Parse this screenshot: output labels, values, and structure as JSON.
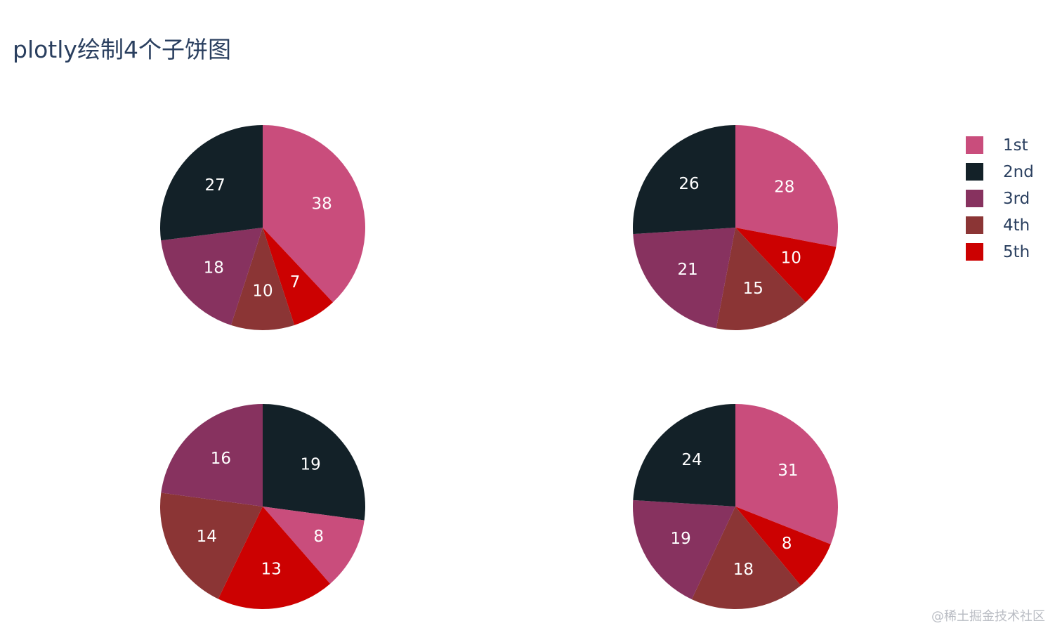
{
  "title": "plotly绘制4个子饼图",
  "watermark": "@稀土掘金技术社区",
  "colors": {
    "1st": "#c94d7c",
    "2nd": "#132128",
    "3rd": "#87325f",
    "4th": "#8b3535",
    "5th": "#cc0101"
  },
  "legend": [
    {
      "label": "1st",
      "color": "#c94d7c"
    },
    {
      "label": "2nd",
      "color": "#132128"
    },
    {
      "label": "3rd",
      "color": "#87325f"
    },
    {
      "label": "4th",
      "color": "#8b3535"
    },
    {
      "label": "5th",
      "color": "#cc0101"
    }
  ],
  "chart_data": [
    {
      "type": "pie",
      "position": "top-left",
      "labels": [
        "1st",
        "5th",
        "4th",
        "3rd",
        "2nd"
      ],
      "values": [
        38,
        7,
        10,
        18,
        27
      ]
    },
    {
      "type": "pie",
      "position": "top-right",
      "labels": [
        "1st",
        "5th",
        "4th",
        "3rd",
        "2nd"
      ],
      "values": [
        28,
        10,
        15,
        21,
        26
      ]
    },
    {
      "type": "pie",
      "position": "bottom-left",
      "labels": [
        "2nd",
        "1st",
        "5th",
        "4th",
        "3rd"
      ],
      "values": [
        19,
        8,
        13,
        14,
        16
      ]
    },
    {
      "type": "pie",
      "position": "bottom-right",
      "labels": [
        "1st",
        "5th",
        "4th",
        "3rd",
        "2nd"
      ],
      "values": [
        31,
        8,
        18,
        19,
        24
      ]
    }
  ]
}
